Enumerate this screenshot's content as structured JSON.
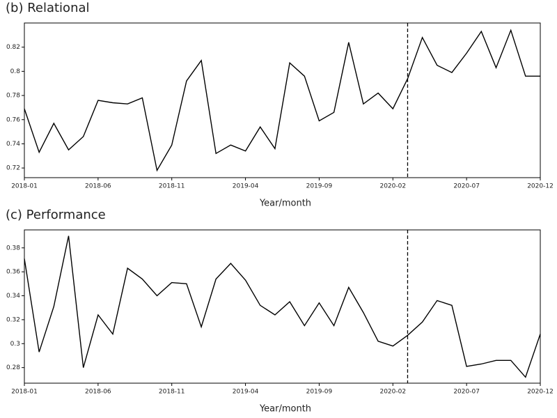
{
  "chart_data": [
    {
      "type": "line",
      "title": "(b) Relational",
      "x_label": "Year/month",
      "categories": [
        "2018-01",
        null,
        null,
        null,
        null,
        "2018-06",
        null,
        null,
        null,
        null,
        "2018-11",
        null,
        null,
        null,
        null,
        "2019-04",
        null,
        null,
        null,
        null,
        "2019-09",
        null,
        null,
        null,
        null,
        "2020-02",
        null,
        null,
        null,
        null,
        "2020-07",
        null,
        null,
        null,
        null,
        "2020-12"
      ],
      "series": [
        {
          "color": "#000000",
          "values": [
            0.769,
            0.733,
            0.757,
            0.735,
            0.746,
            0.776,
            0.774,
            0.773,
            0.778,
            0.718,
            0.739,
            0.792,
            0.809,
            0.732,
            0.739,
            0.734,
            0.754,
            0.736,
            0.807,
            0.796,
            0.759,
            0.766,
            0.824,
            0.773,
            0.782,
            0.769,
            0.794,
            0.828,
            0.805,
            0.799,
            0.815,
            0.833,
            0.803,
            0.834,
            0.796,
            0.796
          ]
        }
      ],
      "ylim": [
        0.712,
        0.84
      ],
      "yticks": [
        0.72,
        0.74,
        0.76,
        0.78,
        0.8,
        0.82
      ],
      "vline_index": 26,
      "grid": false
    },
    {
      "type": "line",
      "title": "(c) Performance",
      "x_label": "Year/month",
      "categories": [
        "2018-01",
        null,
        null,
        null,
        null,
        "2018-06",
        null,
        null,
        null,
        null,
        "2018-11",
        null,
        null,
        null,
        null,
        "2019-04",
        null,
        null,
        null,
        null,
        "2019-09",
        null,
        null,
        null,
        null,
        "2020-02",
        null,
        null,
        null,
        null,
        "2020-07",
        null,
        null,
        null,
        null,
        "2020-12"
      ],
      "series": [
        {
          "color": "#000000",
          "values": [
            0.371,
            0.293,
            0.331,
            0.39,
            0.28,
            0.324,
            0.308,
            0.363,
            0.354,
            0.34,
            0.351,
            0.35,
            0.314,
            0.354,
            0.367,
            0.353,
            0.332,
            0.324,
            0.335,
            0.315,
            0.334,
            0.315,
            0.347,
            0.326,
            0.302,
            0.298,
            0.307,
            0.318,
            0.336,
            0.332,
            0.281,
            0.283,
            0.286,
            0.286,
            0.272,
            0.308
          ]
        }
      ],
      "ylim": [
        0.267,
        0.395
      ],
      "yticks": [
        0.28,
        0.3,
        0.32,
        0.34,
        0.36,
        0.38
      ],
      "vline_index": 26,
      "grid": false
    }
  ]
}
